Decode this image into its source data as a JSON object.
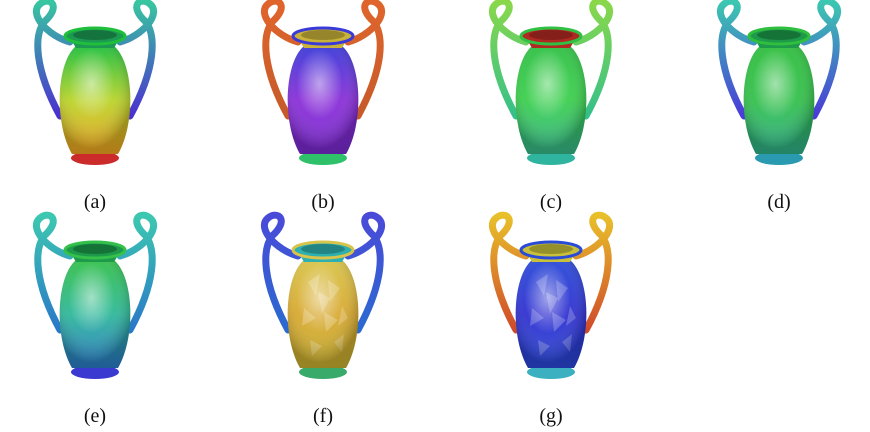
{
  "figure": {
    "panels": [
      {
        "label": "(a)",
        "handle_top": "#37c7a0",
        "handle_bottom": "#4b2fd0",
        "rim": "#1c9a52",
        "body_top": "#1fbf3c",
        "body_mid": "#b9d42a",
        "body_bottom": "#f0a420",
        "base": "#cc2b2b",
        "facets": false
      },
      {
        "label": "(b)",
        "handle_top": "#e0652c",
        "handle_bottom": "#c65a2a",
        "rim": "#c9b23a",
        "body_top": "#3a3ad8",
        "body_mid": "#8a2fd8",
        "body_bottom": "#7a2ad0",
        "base": "#2fc06a",
        "facets": false
      },
      {
        "label": "(c)",
        "handle_top": "#8ad84a",
        "handle_bottom": "#34c08a",
        "rim": "#b02a22",
        "body_top": "#2fc044",
        "body_mid": "#3ccf4e",
        "body_bottom": "#36b88a",
        "base": "#2fb4a0",
        "facets": false
      },
      {
        "label": "(d)",
        "handle_top": "#3cc8b0",
        "handle_bottom": "#4a3ad8",
        "rim": "#1d9a4a",
        "body_top": "#2fbe3e",
        "body_mid": "#34c04c",
        "body_bottom": "#2fb08a",
        "base": "#2a9ab0",
        "facets": false
      },
      {
        "label": "(e)",
        "handle_top": "#3cc8b0",
        "handle_bottom": "#2a78c8",
        "rim": "#1d9a4a",
        "body_top": "#34c04a",
        "body_mid": "#2fb89a",
        "body_bottom": "#2a7ac8",
        "base": "#3a3ad0",
        "facets": false
      },
      {
        "label": "(f)",
        "handle_top": "#4a4ad8",
        "handle_bottom": "#2a6ad0",
        "rim": "#2fb0b0",
        "body_top": "#d8c44a",
        "body_mid": "#d8a830",
        "body_bottom": "#c8b030",
        "base": "#3aaa6a",
        "facets": true
      },
      {
        "label": "(g)",
        "handle_top": "#e8c02a",
        "handle_bottom": "#d04a2a",
        "rim": "#c8c03a",
        "body_top": "#2a4ad8",
        "body_mid": "#3030d0",
        "body_bottom": "#2a48d8",
        "base": "#3ab0c0",
        "facets": true
      }
    ]
  }
}
